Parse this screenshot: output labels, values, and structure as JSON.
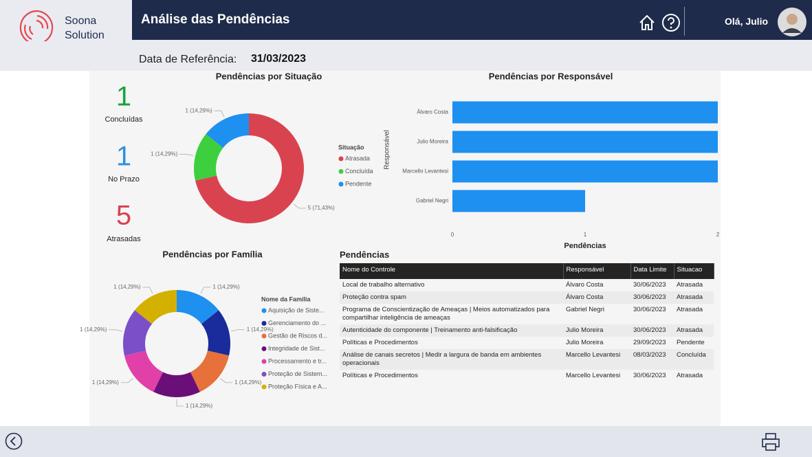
{
  "header": {
    "logo_line1": "Soona",
    "logo_line2": "Solution",
    "title": "Análise das Pendências",
    "greeting": "Olá, Julio"
  },
  "reference": {
    "label": "Data de Referência:",
    "date": "31/03/2023"
  },
  "kpis": [
    {
      "value": 1,
      "label": "Concluídas",
      "color": "#1aa33a"
    },
    {
      "value": 1,
      "label": "No Prazo",
      "color": "#2f8fe0"
    },
    {
      "value": 5,
      "label": "Atrasadas",
      "color": "#d9414f"
    }
  ],
  "chart_data": [
    {
      "type": "donut",
      "title": "Pendências por Situação",
      "legend_title": "Situação",
      "categories": [
        "Atrasada",
        "Concluída",
        "Pendente"
      ],
      "values": [
        5,
        1,
        1
      ],
      "value_labels": [
        "5 (71,43%)",
        "1 (14,29%)",
        "1 (14,29%)"
      ],
      "colors": [
        "#d9434f",
        "#3ecf3e",
        "#1e90f0"
      ]
    },
    {
      "type": "hbar",
      "title": "Pendências por Responsável",
      "xlabel": "Pendências",
      "ylabel": "Responsável",
      "categories": [
        "Álvaro Costa",
        "Julio Moreira",
        "Marcello Levantesi",
        "Gabriel Negri"
      ],
      "values": [
        2,
        2,
        2,
        1
      ],
      "color": "#1e90f0",
      "xlim": [
        0,
        2
      ],
      "xticks": [
        0,
        1,
        2
      ]
    },
    {
      "type": "donut",
      "title": "Pendências por Família",
      "legend_title": "Nome da Família",
      "categories": [
        "Aquisição de Siste...",
        "Gerenciamento do ...",
        "Gestão de Riscos d...",
        "Integridade de Sist...",
        "Processamento e tr...",
        "Proteção de Sistem...",
        "Proteção Física e A..."
      ],
      "values": [
        1,
        1,
        1,
        1,
        1,
        1,
        1
      ],
      "value_labels": [
        "1 (14,29%)",
        "1 (14,29%)",
        "1 (14,29%)",
        "1 (14,29%)",
        "1 (14,29%)",
        "1 (14,29%)",
        "1 (14,29%)"
      ],
      "colors": [
        "#1e90f0",
        "#1a2b9c",
        "#e8703a",
        "#6b0f78",
        "#e040a8",
        "#7b4fc8",
        "#d4b000"
      ]
    }
  ],
  "table": {
    "title": "Pendências",
    "columns": [
      "Nome do Controle",
      "Responsável",
      "Data Limite",
      "Situacao"
    ],
    "rows": [
      [
        "Local de trabalho alternativo",
        "Álvaro Costa",
        "30/06/2023",
        "Atrasada"
      ],
      [
        "Proteção contra spam",
        "Álvaro Costa",
        "30/06/2023",
        "Atrasada"
      ],
      [
        "Programa de Conscientização de Ameaças | Meios automatizados para compartilhar inteligência de ameaças",
        "Gabriel Negri",
        "30/06/2023",
        "Atrasada"
      ],
      [
        "Autenticidade do componente | Treinamento anti-falsificação",
        "Julio Moreira",
        "30/06/2023",
        "Atrasada"
      ],
      [
        "Políticas e Procedimentos",
        "Julio Moreira",
        "29/09/2023",
        "Pendente"
      ],
      [
        "Análise de canais secretos | Medir a largura de banda em ambientes operacionais",
        "Marcello Levantesi",
        "08/03/2023",
        "Concluída"
      ],
      [
        "Políticas e Procedimentos",
        "Marcello Levantesi",
        "30/06/2023",
        "Atrasada"
      ]
    ]
  }
}
